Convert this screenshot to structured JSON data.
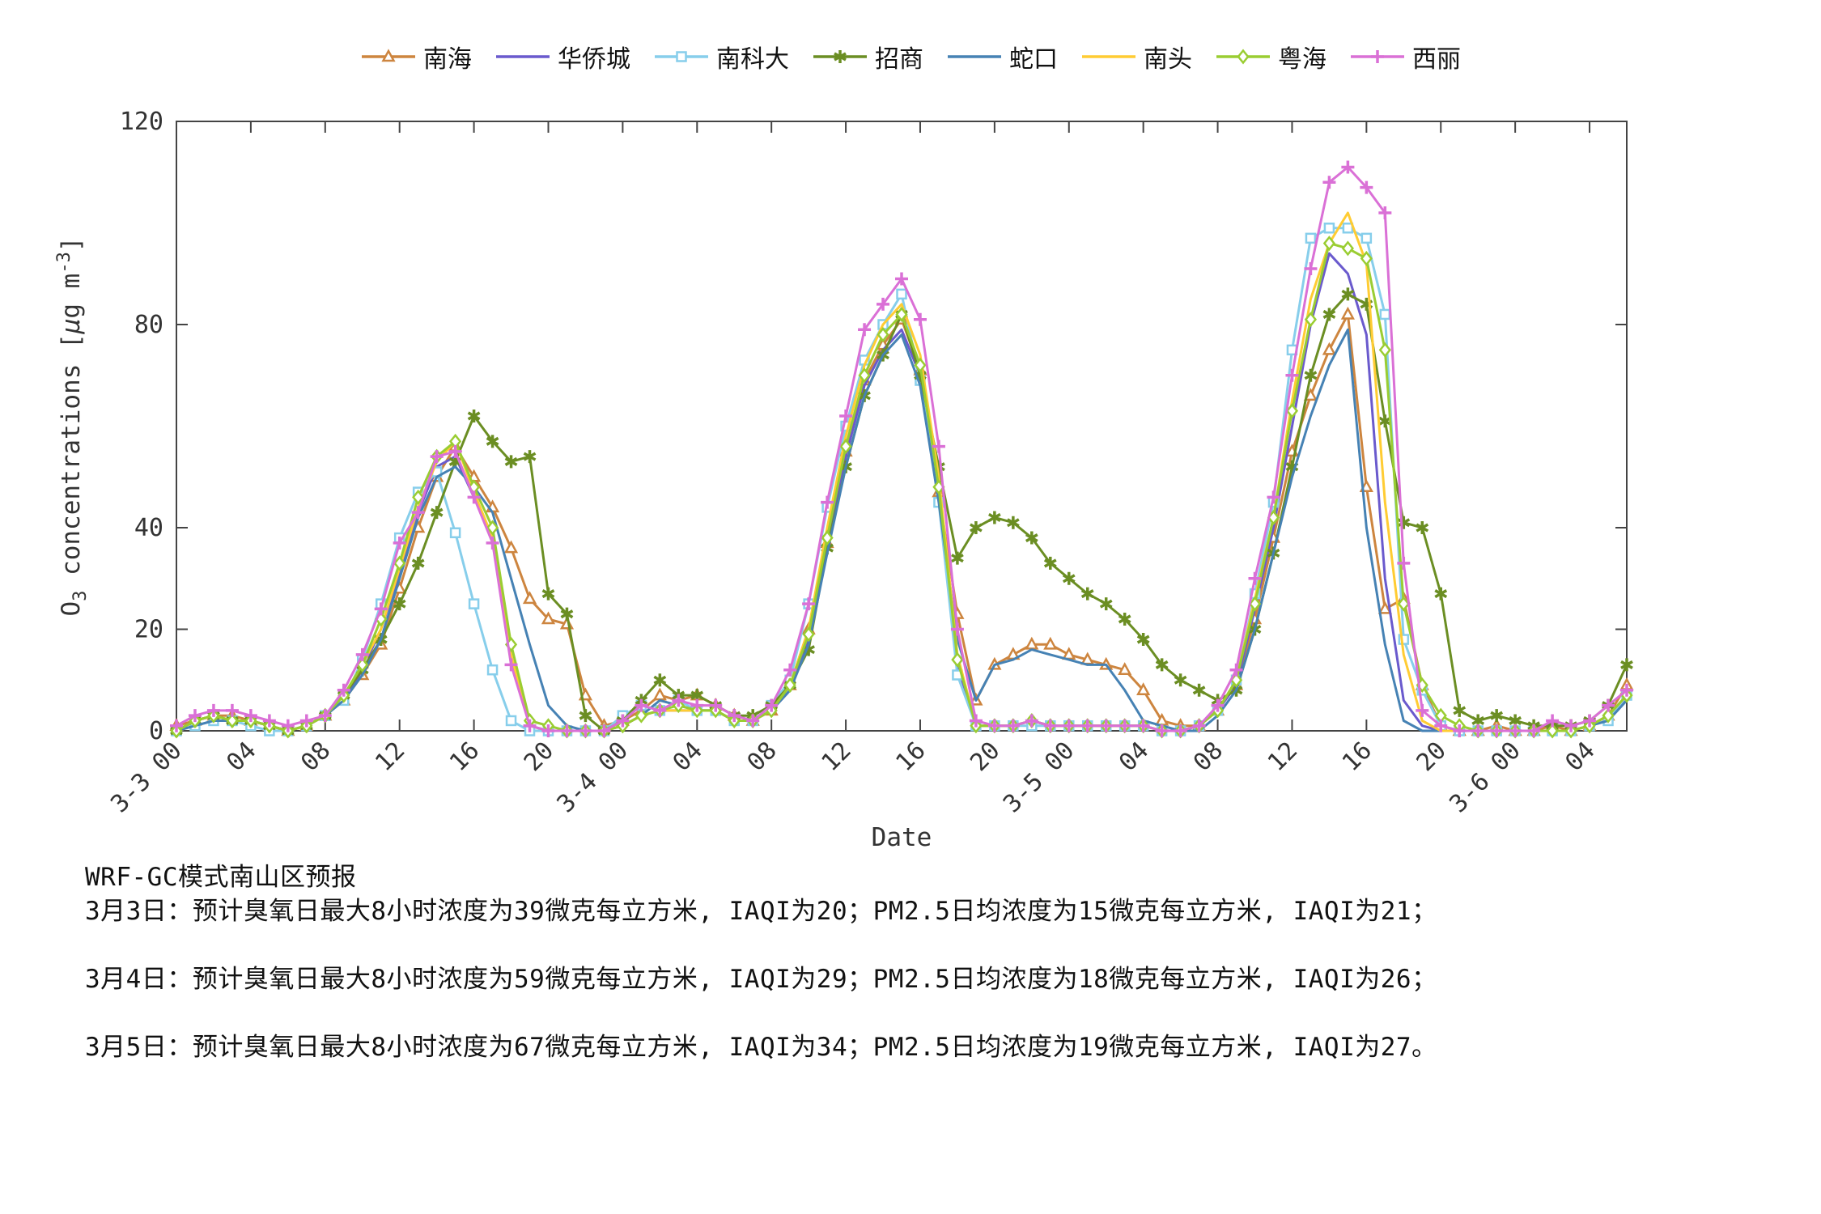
{
  "chart_data": {
    "type": "line",
    "title": "",
    "xlabel": "Date",
    "ylabel": "O3 concentrations [µg m-3]",
    "ylabel_parts": {
      "pre": "O",
      "sub": "3",
      "mid": " concentrations [",
      "mu": "µ",
      "unit": "g m",
      "sup": "-3",
      "close": "]"
    },
    "ylim": [
      0,
      120
    ],
    "y_ticks": [
      0,
      20,
      40,
      80,
      120
    ],
    "grid": "off",
    "legend_position": "top-center",
    "hours_span": 78,
    "x_start_label": "3-3 00",
    "x_tick_hours": [
      0,
      4,
      8,
      12,
      16,
      20,
      24,
      28,
      32,
      36,
      40,
      44,
      48,
      52,
      56,
      60,
      64,
      68,
      72,
      76
    ],
    "x_tick_labels": [
      "3-3 00",
      "04",
      "08",
      "12",
      "16",
      "20",
      "3-4 00",
      "04",
      "08",
      "12",
      "16",
      "20",
      "3-5 00",
      "04",
      "08",
      "12",
      "16",
      "20",
      "3-6 00",
      "04"
    ],
    "series": [
      {
        "name": "南海",
        "color": "#CD853F",
        "marker": "triangle",
        "values": [
          1,
          2,
          3,
          3,
          2,
          1,
          0,
          1,
          3,
          6,
          11,
          17,
          28,
          40,
          50,
          56,
          50,
          44,
          36,
          26,
          22,
          21,
          7,
          1,
          2,
          4,
          7,
          6,
          7,
          5,
          3,
          2,
          4,
          9,
          20,
          37,
          55,
          69,
          76,
          81,
          71,
          47,
          23,
          6,
          13,
          15,
          17,
          17,
          15,
          14,
          13,
          12,
          8,
          2,
          1,
          1,
          4,
          9,
          22,
          38,
          55,
          66,
          75,
          82,
          48,
          24,
          26,
          9,
          1,
          0,
          0,
          1,
          0,
          0,
          1,
          0,
          1,
          3,
          9
        ]
      },
      {
        "name": "华侨城",
        "color": "#6A5ACD",
        "marker": "none",
        "values": [
          0,
          2,
          3,
          2,
          2,
          1,
          0,
          1,
          3,
          6,
          12,
          20,
          31,
          43,
          52,
          54,
          46,
          38,
          14,
          1,
          0,
          0,
          0,
          0,
          1,
          3,
          4,
          4,
          4,
          4,
          2,
          2,
          4,
          8,
          18,
          36,
          54,
          68,
          75,
          79,
          70,
          46,
          13,
          1,
          1,
          1,
          2,
          1,
          1,
          1,
          1,
          1,
          1,
          0,
          0,
          1,
          4,
          9,
          24,
          40,
          60,
          80,
          94,
          90,
          78,
          30,
          6,
          1,
          0,
          0,
          0,
          0,
          0,
          0,
          0,
          0,
          1,
          3,
          6
        ]
      },
      {
        "name": "南科大",
        "color": "#87CEEB",
        "marker": "square",
        "values": [
          0,
          1,
          2,
          2,
          1,
          0,
          0,
          1,
          3,
          6,
          14,
          25,
          38,
          47,
          51,
          39,
          25,
          12,
          2,
          0,
          0,
          0,
          0,
          0,
          3,
          5,
          4,
          6,
          4,
          4,
          2,
          2,
          5,
          10,
          25,
          44,
          60,
          73,
          80,
          86,
          69,
          45,
          11,
          1,
          1,
          1,
          1,
          1,
          1,
          1,
          1,
          1,
          1,
          0,
          0,
          1,
          4,
          10,
          27,
          45,
          75,
          97,
          99,
          99,
          97,
          82,
          18,
          8,
          1,
          0,
          0,
          0,
          0,
          0,
          0,
          0,
          1,
          2,
          7
        ]
      },
      {
        "name": "招商",
        "color": "#6B8E23",
        "marker": "asterisk",
        "values": [
          0,
          2,
          3,
          2,
          2,
          1,
          0,
          1,
          3,
          7,
          12,
          18,
          25,
          33,
          43,
          53,
          62,
          57,
          53,
          54,
          27,
          23,
          3,
          0,
          2,
          6,
          10,
          7,
          7,
          5,
          3,
          3,
          5,
          9,
          16,
          36,
          52,
          66,
          74,
          82,
          70,
          52,
          34,
          40,
          42,
          41,
          38,
          33,
          30,
          27,
          25,
          22,
          18,
          13,
          10,
          8,
          6,
          8,
          20,
          35,
          52,
          70,
          82,
          86,
          84,
          61,
          41,
          40,
          27,
          4,
          2,
          3,
          2,
          1,
          1,
          1,
          2,
          5,
          13
        ]
      },
      {
        "name": "蛇口",
        "color": "#4682B4",
        "marker": "none",
        "values": [
          0,
          1,
          2,
          2,
          2,
          1,
          0,
          1,
          3,
          6,
          11,
          18,
          30,
          42,
          50,
          52,
          48,
          43,
          30,
          17,
          5,
          1,
          0,
          0,
          1,
          3,
          6,
          5,
          4,
          4,
          2,
          2,
          4,
          8,
          17,
          35,
          52,
          66,
          74,
          78,
          68,
          45,
          18,
          6,
          13,
          14,
          16,
          15,
          14,
          13,
          13,
          8,
          2,
          1,
          0,
          0,
          3,
          8,
          20,
          35,
          50,
          62,
          72,
          79,
          40,
          17,
          2,
          0,
          0,
          0,
          0,
          0,
          0,
          0,
          0,
          0,
          1,
          2,
          6
        ]
      },
      {
        "name": "南头",
        "color": "#FFCC33",
        "marker": "none",
        "values": [
          0,
          2,
          3,
          2,
          2,
          1,
          0,
          1,
          3,
          7,
          13,
          20,
          32,
          44,
          53,
          57,
          47,
          38,
          15,
          1,
          0,
          0,
          0,
          0,
          1,
          3,
          4,
          4,
          4,
          4,
          2,
          2,
          4,
          9,
          20,
          40,
          58,
          72,
          80,
          84,
          74,
          50,
          15,
          1,
          1,
          1,
          2,
          1,
          1,
          1,
          1,
          1,
          1,
          0,
          0,
          1,
          4,
          10,
          26,
          42,
          65,
          85,
          96,
          102,
          92,
          45,
          15,
          2,
          0,
          0,
          0,
          0,
          0,
          0,
          0,
          0,
          1,
          3,
          7
        ]
      },
      {
        "name": "粤海",
        "color": "#9ACD32",
        "marker": "diamond",
        "values": [
          0,
          2,
          3,
          2,
          2,
          1,
          0,
          1,
          3,
          7,
          13,
          22,
          33,
          46,
          54,
          57,
          48,
          40,
          17,
          2,
          1,
          0,
          0,
          0,
          1,
          3,
          4,
          5,
          4,
          4,
          2,
          2,
          4,
          9,
          19,
          38,
          56,
          70,
          78,
          82,
          72,
          48,
          14,
          1,
          1,
          1,
          2,
          1,
          1,
          1,
          1,
          1,
          1,
          0,
          0,
          1,
          4,
          10,
          25,
          42,
          63,
          81,
          96,
          95,
          93,
          75,
          25,
          9,
          3,
          1,
          0,
          0,
          0,
          0,
          0,
          0,
          1,
          3,
          7
        ]
      },
      {
        "name": "西丽",
        "color": "#DA70D6",
        "marker": "plus",
        "values": [
          1,
          3,
          4,
          4,
          3,
          2,
          1,
          2,
          3,
          8,
          15,
          24,
          37,
          43,
          54,
          55,
          46,
          37,
          13,
          1,
          0,
          0,
          0,
          0,
          2,
          5,
          4,
          6,
          5,
          5,
          3,
          2,
          5,
          12,
          25,
          45,
          62,
          79,
          84,
          89,
          81,
          56,
          20,
          2,
          1,
          1,
          2,
          1,
          1,
          1,
          1,
          1,
          1,
          0,
          0,
          1,
          5,
          12,
          30,
          46,
          70,
          91,
          108,
          111,
          107,
          102,
          33,
          4,
          1,
          0,
          0,
          0,
          0,
          0,
          2,
          1,
          2,
          5,
          8
        ]
      }
    ]
  },
  "footer": {
    "lines": [
      "WRF-GC模式南山区预报",
      "3月3日：预计臭氧日最大8小时浓度为39微克每立方米, IAQI为20；PM2.5日均浓度为15微克每立方米, IAQI为21；",
      "3月4日：预计臭氧日最大8小时浓度为59微克每立方米, IAQI为29；PM2.5日均浓度为18微克每立方米, IAQI为26；",
      "3月5日：预计臭氧日最大8小时浓度为67微克每立方米, IAQI为34；PM2.5日均浓度为19微克每立方米, IAQI为27。"
    ]
  }
}
